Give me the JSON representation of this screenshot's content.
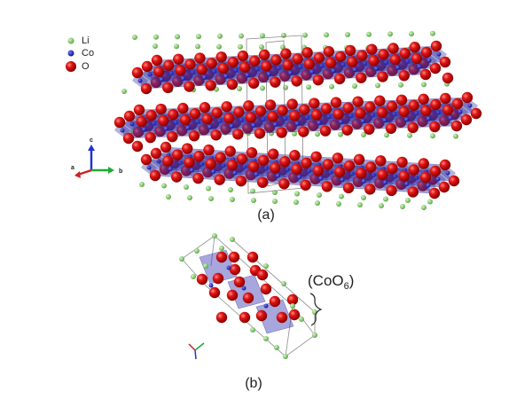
{
  "legend": {
    "items": [
      {
        "label": "Li"
      },
      {
        "label": "Co"
      },
      {
        "label": "O"
      }
    ]
  },
  "axes_a": {
    "a": "a",
    "b": "b",
    "c": "c"
  },
  "annotation": {
    "prefix": "(CoO",
    "subscript": "6",
    "suffix": ")"
  },
  "captions": {
    "a": "(a)",
    "b": "(b)"
  }
}
